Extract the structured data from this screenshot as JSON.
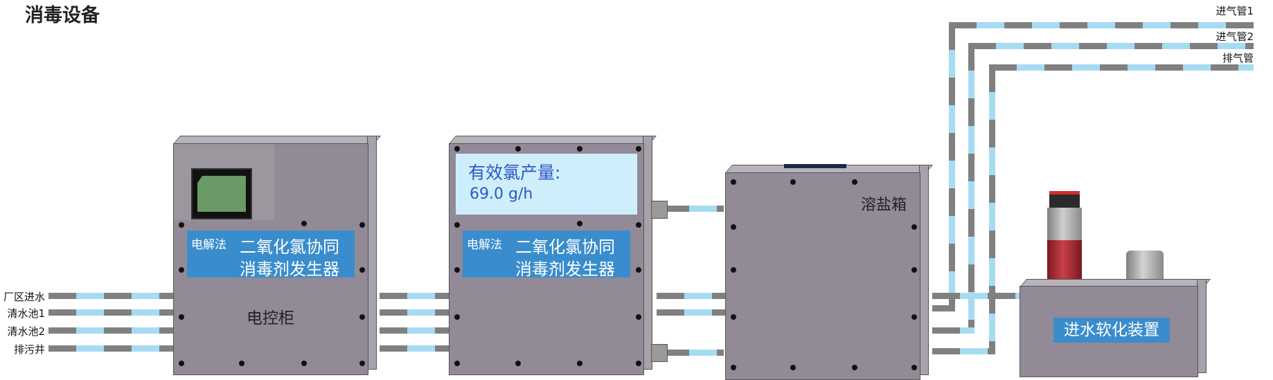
{
  "page": {
    "title": "消毒设备"
  },
  "inlet_labels": [
    "厂区进水",
    "清水池1",
    "清水池2",
    "排污井"
  ],
  "gas_labels": [
    "进气管1",
    "进气管2",
    "排气管"
  ],
  "control_cabinet": {
    "name": "电控柜",
    "method_tag": "电解法",
    "device_name_line1": "二氧化氯协同",
    "device_name_line2": "消毒剂发生器"
  },
  "generator": {
    "readout_title": "有效氯产量:",
    "readout_value": "69.0 g/h",
    "method_tag": "电解法",
    "device_name_line1": "二氧化氯协同",
    "device_name_line2": "消毒剂发生器"
  },
  "salt_tank": {
    "name": "溶盐箱"
  },
  "softener": {
    "name": "进水软化装置"
  },
  "colors": {
    "pipe_grey": "#808080",
    "pipe_blue": "#a6dcf3",
    "panel_blue": "#3a8dcc",
    "cabinet": "#928a96"
  }
}
